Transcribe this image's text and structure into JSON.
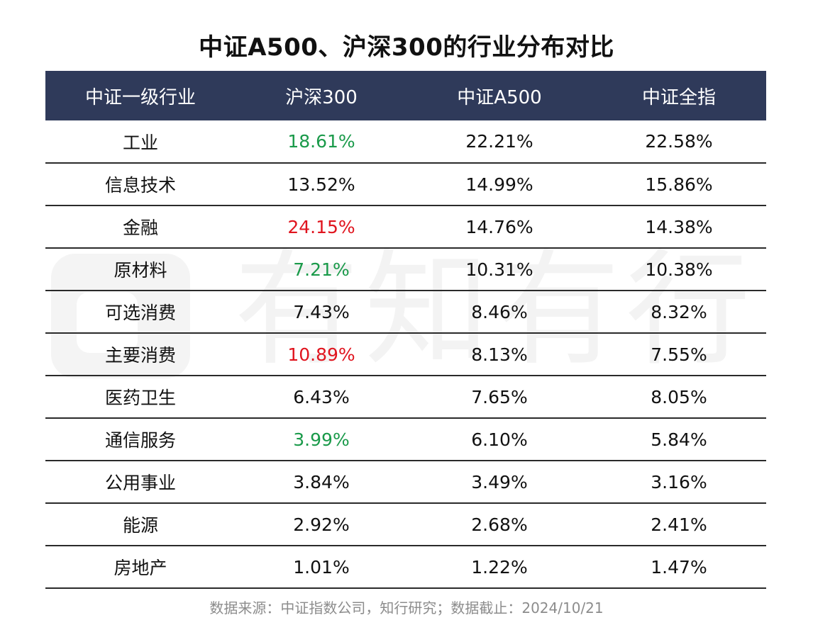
{
  "title": "中证A500、沪深300的行业分布对比",
  "watermark_text": "有知有行",
  "table": {
    "headers": [
      "中证一级行业",
      "沪深300",
      "中证A500",
      "中证全指"
    ],
    "rows": [
      {
        "industry": "工业",
        "hs300": "18.61%",
        "hs300_color": "#1a9a4a",
        "a500": "22.21%",
        "all": "22.58%"
      },
      {
        "industry": "信息技术",
        "hs300": "13.52%",
        "hs300_color": "#111111",
        "a500": "14.99%",
        "all": "15.86%"
      },
      {
        "industry": "金融",
        "hs300": "24.15%",
        "hs300_color": "#e0141e",
        "a500": "14.76%",
        "all": "14.38%"
      },
      {
        "industry": "原材料",
        "hs300": "7.21%",
        "hs300_color": "#1a9a4a",
        "a500": "10.31%",
        "all": "10.38%"
      },
      {
        "industry": "可选消费",
        "hs300": "7.43%",
        "hs300_color": "#111111",
        "a500": "8.46%",
        "all": "8.32%"
      },
      {
        "industry": "主要消费",
        "hs300": "10.89%",
        "hs300_color": "#e0141e",
        "a500": "8.13%",
        "all": "7.55%"
      },
      {
        "industry": "医药卫生",
        "hs300": "6.43%",
        "hs300_color": "#111111",
        "a500": "7.65%",
        "all": "8.05%"
      },
      {
        "industry": "通信服务",
        "hs300": "3.99%",
        "hs300_color": "#1a9a4a",
        "a500": "6.10%",
        "all": "5.84%"
      },
      {
        "industry": "公用事业",
        "hs300": "3.84%",
        "hs300_color": "#111111",
        "a500": "3.49%",
        "all": "3.16%"
      },
      {
        "industry": "能源",
        "hs300": "2.92%",
        "hs300_color": "#111111",
        "a500": "2.68%",
        "all": "2.41%"
      },
      {
        "industry": "房地产",
        "hs300": "1.01%",
        "hs300_color": "#111111",
        "a500": "1.22%",
        "all": "1.47%"
      }
    ]
  },
  "source": "数据来源：中证指数公司，知行研究；数据截止：2024/10/21",
  "colors": {
    "header_bg": "#2f3a5a",
    "header_text": "#ffffff",
    "highlight_green": "#1a9a4a",
    "highlight_red": "#e0141e",
    "source_text": "#8c8c8c"
  }
}
